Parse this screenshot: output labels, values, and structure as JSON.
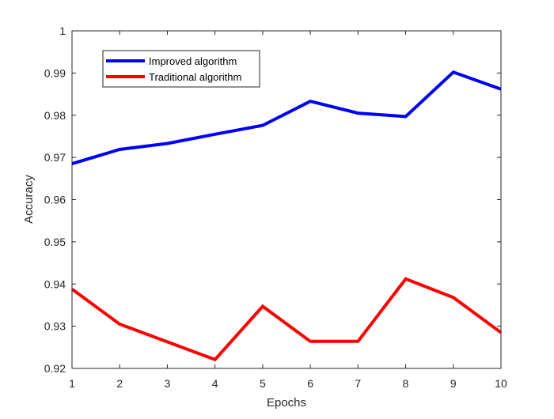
{
  "chart_data": {
    "type": "line",
    "title": "",
    "xlabel": "Epochs",
    "ylabel": "Accuracy",
    "x": [
      1,
      2,
      3,
      4,
      5,
      6,
      7,
      8,
      9,
      10
    ],
    "xlim": [
      1,
      10
    ],
    "ylim": [
      0.92,
      1.0
    ],
    "xticks": [
      "1",
      "2",
      "3",
      "4",
      "5",
      "6",
      "7",
      "8",
      "9",
      "10"
    ],
    "yticks": [
      "0.92",
      "0.93",
      "0.94",
      "0.95",
      "0.96",
      "0.97",
      "0.98",
      "0.99",
      "1"
    ],
    "grid": false,
    "legend_position": "top-left",
    "series": [
      {
        "name": "Improved algorithm",
        "color": "#0000ff",
        "values": [
          0.9685,
          0.9719,
          0.9733,
          0.9755,
          0.9776,
          0.9833,
          0.9805,
          0.9797,
          0.9902,
          0.9862
        ]
      },
      {
        "name": "Traditional algorithm",
        "color": "#ff0000",
        "values": [
          0.9388,
          0.9305,
          0.9263,
          0.9221,
          0.9347,
          0.9264,
          0.9264,
          0.9412,
          0.9368,
          0.9285
        ]
      }
    ]
  }
}
